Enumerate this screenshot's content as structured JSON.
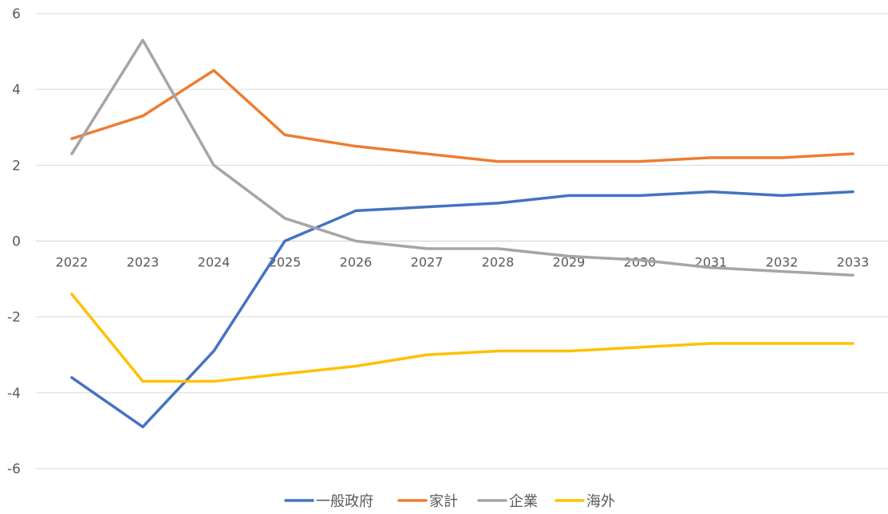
{
  "chart_data": {
    "type": "line",
    "title": "",
    "xlabel": "",
    "ylabel": "",
    "x": [
      "2022",
      "2023",
      "2024",
      "2025",
      "2026",
      "2027",
      "2028",
      "2029",
      "2030",
      "2031",
      "2032",
      "2033"
    ],
    "y_ticks": [
      "6",
      "4",
      "2",
      "0",
      "-2",
      "-4",
      "-6"
    ],
    "ylim": [
      -6,
      6
    ],
    "grid": true,
    "legend_position": "bottom",
    "series": [
      {
        "name": "一般政府",
        "color": "#4472C4",
        "values": [
          -3.6,
          -4.9,
          -2.9,
          0.0,
          0.8,
          0.9,
          1.0,
          1.2,
          1.2,
          1.3,
          1.2,
          1.3
        ]
      },
      {
        "name": "家計",
        "color": "#ED7D31",
        "values": [
          2.7,
          3.3,
          4.5,
          2.8,
          2.5,
          2.3,
          2.1,
          2.1,
          2.1,
          2.2,
          2.2,
          2.3
        ]
      },
      {
        "name": "企業",
        "color": "#A5A5A5",
        "values": [
          2.3,
          5.3,
          2.0,
          0.6,
          0.0,
          -0.2,
          -0.2,
          -0.4,
          -0.5,
          -0.7,
          -0.8,
          -0.9
        ]
      },
      {
        "name": "海外",
        "color": "#FFC000",
        "values": [
          -1.4,
          -3.7,
          -3.7,
          -3.5,
          -3.3,
          -3.0,
          -2.9,
          -2.9,
          -2.8,
          -2.7,
          -2.7,
          -2.7
        ]
      }
    ]
  }
}
